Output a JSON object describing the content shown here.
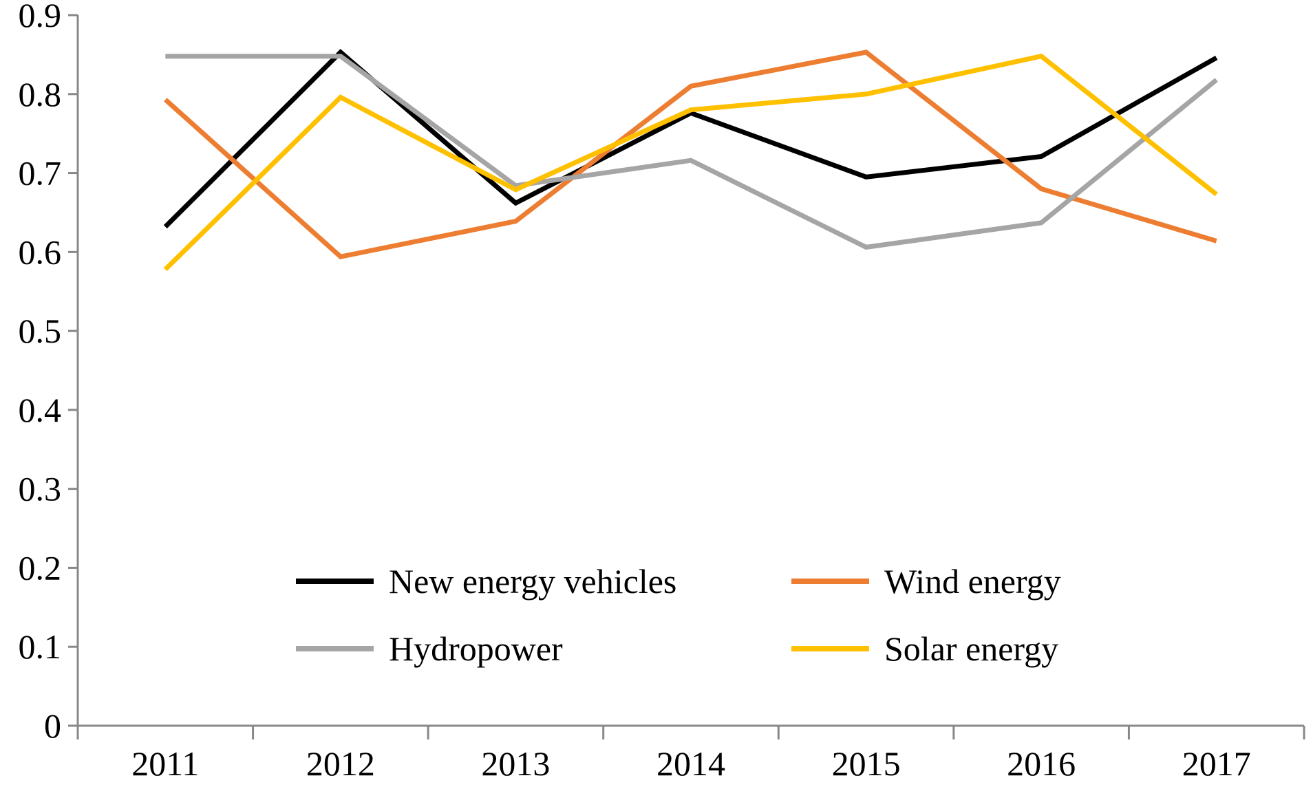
{
  "chart_data": {
    "type": "line",
    "title": "",
    "xlabel": "",
    "ylabel": "",
    "categories": [
      "2011",
      "2012",
      "2013",
      "2014",
      "2015",
      "2016",
      "2017"
    ],
    "ylim": [
      0,
      0.9
    ],
    "yticks": [
      "0",
      "0.1",
      "0.2",
      "0.3",
      "0.4",
      "0.5",
      "0.6",
      "0.7",
      "0.8",
      "0.9"
    ],
    "grid": false,
    "legend_position": "bottom-center",
    "series": [
      {
        "name": "New energy vehicles",
        "color": "#000000",
        "values": [
          0.632,
          0.853,
          0.662,
          0.776,
          0.695,
          0.721,
          0.846
        ]
      },
      {
        "name": "Wind energy",
        "color": "#ED7D31",
        "values": [
          0.793,
          0.594,
          0.639,
          0.81,
          0.853,
          0.68,
          0.614
        ]
      },
      {
        "name": "Hydropower",
        "color": "#A5A5A5",
        "values": [
          0.848,
          0.848,
          0.684,
          0.716,
          0.606,
          0.637,
          0.818
        ]
      },
      {
        "name": "Solar energy",
        "color": "#FFC000",
        "values": [
          0.578,
          0.796,
          0.679,
          0.78,
          0.8,
          0.848,
          0.673
        ]
      }
    ]
  }
}
